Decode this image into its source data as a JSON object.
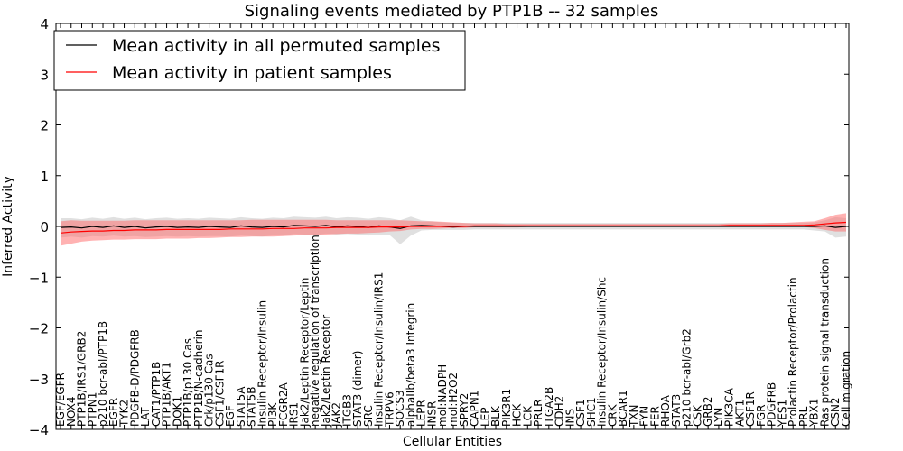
{
  "chart_data": {
    "type": "line",
    "title": "Signaling events mediated by PTP1B -- 32 samples",
    "xlabel": "Cellular Entities",
    "ylabel": "Inferred Activity",
    "ylim": [
      -4,
      4
    ],
    "yticks": [
      "4",
      "3",
      "2",
      "1",
      "0",
      "−1",
      "−2",
      "−3",
      "−4"
    ],
    "grid": false,
    "legend_position": "top-left",
    "categories": [
      "EGF/EGFR",
      "NOX4",
      "PTP1B/IRS1/GRB2",
      "PTPN1",
      "p210 bcr-abl/PTP1B",
      "EGFR",
      "TYK2",
      "PDGFB-D/PDGFRB",
      "LAT",
      "CAT1/PTP1B",
      "PTP1B/AKT1",
      "DOK1",
      "PTP1B/p130 Cas",
      "PTP1B/N-cadherin",
      "Crk/p130 Cas",
      "CSF1/CSF1R",
      "EGF",
      "STAT5A",
      "STAT5B",
      "Insulin Receptor/Insulin",
      "PI3K",
      "FCGR2A",
      "IRS1",
      "Jak2/Leptin Receptor/Leptin",
      "negative regulation of transcription",
      "Jak2/Leptin Receptor",
      "JAK2",
      "ITGB3",
      "STAT3 (dimer)",
      "SRC",
      "Insulin Receptor/Insulin/IRS1",
      "TRPV6",
      "SOCS3",
      "alphaIIb/beta3 Integrin",
      "LEPR",
      "INSR",
      "mol:NADPH",
      "mol:H2O2",
      "SPRY2",
      "CAPN1",
      "LEP",
      "BLK",
      "PIK3R1",
      "HCK",
      "LCK",
      "PRLR",
      "ITGA2B",
      "CDH2",
      "INS",
      "CSF1",
      "SHC1",
      "Insulin Receptor/Insulin/Shc",
      "CRK",
      "BCAR1",
      "TXN",
      "FYN",
      "FER",
      "RHOA",
      "STAT3",
      "p210 bcr-abl/Grb2",
      "CSK",
      "GRB2",
      "LYN",
      "PIK3CA",
      "AKT1",
      "CSF1R",
      "FGR",
      "PDGFRB",
      "YES1",
      "Prolactin Receptor/Prolactin",
      "PRL",
      "YBX1",
      "Ras protein signal transduction",
      "CSN2",
      "Cell migration"
    ],
    "series": [
      {
        "name": "Mean activity in all permuted samples",
        "color": "#000000",
        "band_color": "#bbbbbb",
        "values": [
          -0.02,
          -0.01,
          -0.03,
          0.0,
          -0.02,
          0.01,
          -0.02,
          0.0,
          -0.03,
          -0.01,
          0.0,
          -0.02,
          -0.01,
          -0.02,
          0.0,
          -0.01,
          -0.02,
          0.01,
          -0.01,
          -0.02,
          0.0,
          -0.01,
          0.02,
          0.01,
          0.0,
          0.02,
          -0.01,
          0.01,
          0.0,
          -0.02,
          0.01,
          -0.01,
          -0.04,
          0.01,
          0.02,
          0.01,
          0.0,
          -0.01,
          0.0,
          0.0,
          0.0,
          0.0,
          0.0,
          0.0,
          0.0,
          0.0,
          0.0,
          0.0,
          0.0,
          0.0,
          0.0,
          0.0,
          0.0,
          0.0,
          0.0,
          0.0,
          0.0,
          0.0,
          0.0,
          0.0,
          0.0,
          0.0,
          0.0,
          0.0,
          0.0,
          0.0,
          0.0,
          0.0,
          0.0,
          0.0,
          0.0,
          0.0,
          0.01,
          -0.02,
          0.0
        ],
        "lower": [
          -0.22,
          -0.2,
          -0.22,
          -0.19,
          -0.2,
          -0.18,
          -0.2,
          -0.19,
          -0.21,
          -0.2,
          -0.19,
          -0.2,
          -0.19,
          -0.2,
          -0.19,
          -0.19,
          -0.2,
          -0.18,
          -0.19,
          -0.2,
          -0.18,
          -0.18,
          -0.15,
          -0.16,
          -0.17,
          -0.14,
          -0.16,
          -0.15,
          -0.16,
          -0.18,
          -0.16,
          -0.17,
          -0.35,
          -0.18,
          -0.08,
          -0.07,
          -0.07,
          -0.07,
          -0.07,
          -0.06,
          -0.06,
          -0.06,
          -0.06,
          -0.06,
          -0.06,
          -0.06,
          -0.06,
          -0.06,
          -0.06,
          -0.06,
          -0.06,
          -0.06,
          -0.06,
          -0.06,
          -0.06,
          -0.06,
          -0.06,
          -0.06,
          -0.06,
          -0.06,
          -0.06,
          -0.06,
          -0.06,
          -0.06,
          -0.06,
          -0.06,
          -0.06,
          -0.06,
          -0.06,
          -0.06,
          -0.06,
          -0.08,
          -0.1,
          -0.22,
          -0.2
        ],
        "upper": [
          0.16,
          0.16,
          0.14,
          0.17,
          0.15,
          0.18,
          0.15,
          0.17,
          0.14,
          0.16,
          0.17,
          0.15,
          0.16,
          0.15,
          0.17,
          0.16,
          0.15,
          0.18,
          0.16,
          0.15,
          0.17,
          0.16,
          0.19,
          0.18,
          0.17,
          0.19,
          0.16,
          0.18,
          0.17,
          0.15,
          0.18,
          0.16,
          0.12,
          0.19,
          0.12,
          0.1,
          0.08,
          0.07,
          0.07,
          0.07,
          0.07,
          0.07,
          0.07,
          0.07,
          0.07,
          0.07,
          0.07,
          0.07,
          0.07,
          0.07,
          0.07,
          0.07,
          0.07,
          0.07,
          0.07,
          0.07,
          0.07,
          0.07,
          0.07,
          0.07,
          0.07,
          0.07,
          0.07,
          0.07,
          0.07,
          0.07,
          0.07,
          0.07,
          0.07,
          0.07,
          0.07,
          0.08,
          0.12,
          0.18,
          0.16
        ]
      },
      {
        "name": "Mean activity in patient samples",
        "color": "#ff0000",
        "band_color": "#ff6666",
        "values": [
          -0.13,
          -0.11,
          -0.1,
          -0.09,
          -0.09,
          -0.08,
          -0.08,
          -0.07,
          -0.07,
          -0.07,
          -0.06,
          -0.06,
          -0.06,
          -0.06,
          -0.06,
          -0.06,
          -0.05,
          -0.05,
          -0.05,
          -0.05,
          -0.04,
          -0.04,
          -0.04,
          -0.03,
          -0.03,
          -0.03,
          -0.02,
          -0.02,
          -0.02,
          -0.02,
          -0.01,
          -0.01,
          -0.01,
          0.0,
          0.0,
          0.0,
          0.0,
          0.0,
          0.0,
          0.01,
          0.01,
          0.01,
          0.01,
          0.01,
          0.01,
          0.01,
          0.01,
          0.01,
          0.01,
          0.01,
          0.01,
          0.01,
          0.01,
          0.01,
          0.01,
          0.01,
          0.01,
          0.01,
          0.01,
          0.01,
          0.01,
          0.01,
          0.01,
          0.02,
          0.02,
          0.02,
          0.02,
          0.02,
          0.02,
          0.02,
          0.02,
          0.03,
          0.05,
          0.07,
          0.08
        ],
        "lower": [
          -0.38,
          -0.34,
          -0.3,
          -0.28,
          -0.27,
          -0.26,
          -0.26,
          -0.25,
          -0.25,
          -0.25,
          -0.24,
          -0.24,
          -0.24,
          -0.23,
          -0.23,
          -0.22,
          -0.21,
          -0.21,
          -0.2,
          -0.2,
          -0.2,
          -0.19,
          -0.18,
          -0.17,
          -0.17,
          -0.16,
          -0.15,
          -0.14,
          -0.14,
          -0.13,
          -0.12,
          -0.1,
          -0.09,
          -0.06,
          -0.05,
          -0.05,
          -0.04,
          -0.03,
          -0.03,
          -0.02,
          -0.02,
          -0.02,
          -0.02,
          -0.02,
          -0.01,
          -0.01,
          -0.01,
          -0.01,
          -0.01,
          -0.01,
          -0.01,
          -0.01,
          -0.01,
          -0.01,
          -0.01,
          -0.01,
          -0.01,
          -0.01,
          -0.01,
          -0.01,
          -0.01,
          -0.01,
          -0.01,
          -0.01,
          -0.01,
          -0.01,
          -0.01,
          -0.01,
          -0.01,
          -0.01,
          -0.01,
          -0.03,
          -0.07,
          -0.1,
          -0.1
        ],
        "upper": [
          0.1,
          0.12,
          0.11,
          0.11,
          0.11,
          0.11,
          0.11,
          0.12,
          0.12,
          0.12,
          0.12,
          0.12,
          0.12,
          0.12,
          0.12,
          0.12,
          0.12,
          0.12,
          0.13,
          0.13,
          0.13,
          0.13,
          0.13,
          0.13,
          0.13,
          0.13,
          0.12,
          0.12,
          0.12,
          0.12,
          0.12,
          0.12,
          0.12,
          0.11,
          0.1,
          0.1,
          0.09,
          0.08,
          0.07,
          0.06,
          0.06,
          0.06,
          0.05,
          0.05,
          0.05,
          0.05,
          0.05,
          0.05,
          0.05,
          0.05,
          0.05,
          0.05,
          0.05,
          0.05,
          0.05,
          0.05,
          0.05,
          0.05,
          0.05,
          0.05,
          0.05,
          0.05,
          0.05,
          0.06,
          0.06,
          0.06,
          0.06,
          0.07,
          0.07,
          0.08,
          0.09,
          0.1,
          0.16,
          0.23,
          0.26
        ]
      }
    ]
  }
}
